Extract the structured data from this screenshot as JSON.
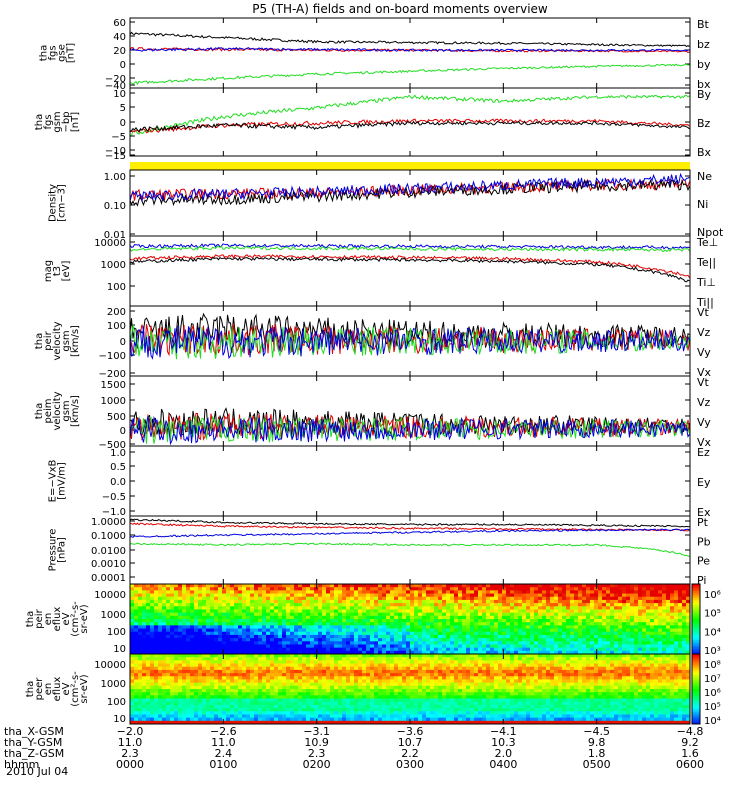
{
  "title": "P5 (TH-A) fields and on-board moments overview",
  "date_label": "2010 Jul 04",
  "colors": {
    "black": "#000000",
    "red": "#e00000",
    "green": "#22dd22",
    "blue": "#0000e0",
    "yellow": "#ffee00"
  },
  "chart_data": [
    {
      "type": "line",
      "panel": "fgs-gse",
      "ylabel_lines": [
        "tha",
        "fgs",
        "gse",
        "[nT]"
      ],
      "ylim": [
        -40,
        60
      ],
      "yticks": [
        "60",
        "40",
        "20",
        "0",
        "−20",
        "−40"
      ],
      "grid": false,
      "legend": "right",
      "x": [
        "0000",
        "0100",
        "0200",
        "0300",
        "0400",
        "0500",
        "0600"
      ],
      "series": [
        {
          "name": "Bt",
          "color": "black",
          "values": [
            38,
            32,
            26,
            25,
            24,
            22,
            20
          ]
        },
        {
          "name": "bz",
          "color": "red",
          "values": [
            16,
            15,
            14,
            14,
            13,
            13,
            12
          ]
        },
        {
          "name": "by",
          "color": "green",
          "values": [
            -33,
            -26,
            -20,
            -16,
            -12,
            -9,
            -7
          ]
        },
        {
          "name": "bx",
          "color": "blue",
          "values": [
            14,
            16,
            15,
            14,
            14,
            14,
            14
          ]
        }
      ]
    },
    {
      "type": "line",
      "panel": "fgs-gsm",
      "ylabel_lines": [
        "tha",
        "fgs",
        "gsm",
        "−bp",
        "[nT]"
      ],
      "ylim": [
        -18,
        13
      ],
      "yticks": [
        "10",
        "5",
        "0",
        "−5",
        "−10",
        "−15"
      ],
      "grid": false,
      "legend": "right",
      "x": [
        "0000",
        "0100",
        "0200",
        "0300",
        "0400",
        "0500",
        "0600"
      ],
      "series": [
        {
          "name": "By",
          "color": "green",
          "values": [
            -8,
            0,
            4,
            9,
            7,
            9,
            9
          ]
        },
        {
          "name": "Bz",
          "color": "red",
          "values": [
            -7,
            -4,
            -3,
            -2,
            -2,
            -2,
            -4
          ]
        },
        {
          "name": "Bx",
          "color": "black",
          "values": [
            -6,
            -4,
            -5,
            -3,
            -3,
            -3,
            -5
          ]
        }
      ]
    },
    {
      "type": "line",
      "panel": "density",
      "ylabel_lines": [
        "Density",
        "[cm−3]"
      ],
      "scale": "log",
      "ylim": [
        0.01,
        1.5
      ],
      "yticks": [
        "1.00",
        "0.10",
        "0.01"
      ],
      "grid": false,
      "legend": "right",
      "x": [
        "0000",
        "0100",
        "0200",
        "0300",
        "0400",
        "0500",
        "0600"
      ],
      "series": [
        {
          "name": "Ne",
          "color": "red",
          "values": [
            0.22,
            0.25,
            0.26,
            0.32,
            0.4,
            0.48,
            0.52
          ]
        },
        {
          "name": "Ni",
          "color": "black",
          "values": [
            0.15,
            0.16,
            0.2,
            0.28,
            0.36,
            0.44,
            0.5
          ]
        },
        {
          "name": "Npot",
          "color": "blue",
          "values": [
            0.2,
            0.24,
            0.28,
            0.36,
            0.46,
            0.6,
            0.75
          ]
        }
      ]
    },
    {
      "type": "line",
      "panel": "temperature",
      "ylabel_lines": [
        "mag",
        "t3",
        "[eV]"
      ],
      "scale": "log",
      "ylim": [
        30,
        15000
      ],
      "yticks": [
        "10000",
        "1000",
        "100"
      ],
      "grid": false,
      "legend": "right",
      "x": [
        "0000",
        "0100",
        "0200",
        "0300",
        "0400",
        "0500",
        "0600"
      ],
      "series": [
        {
          "name": "Te⊥",
          "color": "red",
          "values": [
            2000,
            2500,
            2400,
            2200,
            2000,
            1500,
            400
          ]
        },
        {
          "name": "Te||",
          "color": "black",
          "values": [
            1500,
            2000,
            1900,
            1800,
            1600,
            1200,
            250
          ]
        },
        {
          "name": "Ti⊥",
          "color": "blue",
          "values": [
            6000,
            6500,
            6200,
            6000,
            5800,
            5600,
            5400
          ]
        },
        {
          "name": "Ti||",
          "color": "green",
          "values": [
            4500,
            5200,
            5000,
            4800,
            4600,
            4500,
            4300
          ]
        }
      ]
    },
    {
      "type": "line",
      "panel": "peir-velocity",
      "ylabel_lines": [
        "tha",
        "peir",
        "velocity",
        "gsm",
        "[km/s]"
      ],
      "ylim": [
        -200,
        200
      ],
      "yticks": [
        "200",
        "100",
        "0",
        "−100",
        "−200"
      ],
      "grid": false,
      "legend": "right",
      "x": [
        "0000",
        "0100",
        "0200",
        "0300",
        "0400",
        "0500",
        "0600"
      ],
      "series": [
        {
          "name": "Vt",
          "color": "black",
          "values": [
            40,
            70,
            50,
            40,
            35,
            30,
            30
          ]
        },
        {
          "name": "Vz",
          "color": "red",
          "values": [
            5,
            10,
            5,
            5,
            5,
            5,
            5
          ]
        },
        {
          "name": "Vy",
          "color": "green",
          "values": [
            -5,
            -10,
            -5,
            0,
            -5,
            0,
            0
          ]
        },
        {
          "name": "Vx",
          "color": "blue",
          "values": [
            0,
            -5,
            0,
            0,
            0,
            0,
            0
          ]
        }
      ]
    },
    {
      "type": "line",
      "panel": "peim-velocity",
      "ylabel_lines": [
        "tha",
        "peim",
        "velocity",
        "gsm",
        "[km/s]"
      ],
      "ylim": [
        -500,
        1500
      ],
      "yticks": [
        "1500",
        "1000",
        "500",
        "0",
        "−500"
      ],
      "grid": false,
      "legend": "right",
      "x": [
        "0000",
        "0100",
        "0200",
        "0300",
        "0400",
        "0500",
        "0600"
      ],
      "series": [
        {
          "name": "Vt",
          "color": "black",
          "values": [
            150,
            200,
            180,
            150,
            120,
            100,
            100
          ]
        },
        {
          "name": "Vz",
          "color": "red",
          "values": [
            50,
            60,
            50,
            40,
            40,
            30,
            30
          ]
        },
        {
          "name": "Vy",
          "color": "green",
          "values": [
            -50,
            -40,
            -30,
            -20,
            -20,
            -10,
            0
          ]
        },
        {
          "name": "Vx",
          "color": "blue",
          "values": [
            -30,
            -60,
            -40,
            -20,
            -10,
            -10,
            -5
          ]
        }
      ]
    },
    {
      "type": "line",
      "panel": "efield",
      "ylabel_lines": [
        "E=−VxB",
        "[mV/m]"
      ],
      "ylim": [
        -1.0,
        1.0
      ],
      "yticks": [
        "1.0",
        "0.5",
        "0.0",
        "−0.5",
        "−1.0"
      ],
      "grid": false,
      "legend": "right",
      "series": [
        {
          "name": "Ez",
          "color": "red",
          "values": []
        },
        {
          "name": "Ey",
          "color": "green",
          "values": []
        },
        {
          "name": "Ex",
          "color": "blue",
          "values": []
        }
      ]
    },
    {
      "type": "line",
      "panel": "pressure",
      "ylabel_lines": [
        "Pressure",
        "[nPa]"
      ],
      "scale": "log",
      "ylim": [
        0.0001,
        1.5
      ],
      "yticks": [
        "1.0000",
        "0.1000",
        "0.0100",
        "0.0010",
        "0.0001"
      ],
      "grid": false,
      "legend": "right",
      "x": [
        "0000",
        "0100",
        "0200",
        "0300",
        "0400",
        "0500",
        "0600"
      ],
      "series": [
        {
          "name": "Pt",
          "color": "black",
          "values": [
            0.9,
            0.6,
            0.5,
            0.45,
            0.45,
            0.4,
            0.35
          ]
        },
        {
          "name": "Pb",
          "color": "red",
          "values": [
            0.5,
            0.35,
            0.3,
            0.26,
            0.24,
            0.22,
            0.2
          ]
        },
        {
          "name": "Pe",
          "color": "green",
          "values": [
            0.03,
            0.025,
            0.03,
            0.025,
            0.025,
            0.025,
            0.005
          ]
        },
        {
          "name": "Pi",
          "color": "blue",
          "values": [
            0.08,
            0.1,
            0.12,
            0.15,
            0.18,
            0.2,
            0.22
          ]
        }
      ]
    },
    {
      "type": "heatmap",
      "panel": "peir-en-eflux",
      "ylabel_lines": [
        "tha",
        "peir",
        "en",
        "eflux",
        "eV",
        "(cm²-s-",
        "sr-eV)"
      ],
      "scale": "log",
      "ylim": [
        7,
        30000
      ],
      "yticks": [
        "10000",
        "1000",
        "100",
        "10"
      ],
      "colorbar_ticks": [
        "10⁶",
        "10⁵",
        "10⁴",
        "10³"
      ],
      "colorbar_range": [
        1000,
        1000000
      ]
    },
    {
      "type": "heatmap",
      "panel": "peer-en-eflux",
      "ylabel_lines": [
        "tha",
        "peer",
        "en",
        "eflux",
        "eV",
        "(cm²-s-",
        "sr-eV)"
      ],
      "scale": "log",
      "ylim": [
        7,
        30000
      ],
      "yticks": [
        "10000",
        "1000",
        "100",
        "10"
      ],
      "colorbar_ticks": [
        "10⁸",
        "10⁷",
        "10⁶",
        "10⁵",
        "10⁴"
      ],
      "colorbar_range": [
        10000,
        100000000
      ]
    }
  ],
  "x_axis": {
    "labels": [
      "tha_X-GSM",
      "tha_Y-GSM",
      "tha_Z-GSM",
      "hhmm"
    ],
    "rows": [
      [
        "−2.0",
        "−2.6",
        "−3.1",
        "−3.6",
        "−4.1",
        "−4.5",
        "−4.8"
      ],
      [
        "11.0",
        "11.0",
        "10.9",
        "10.7",
        "10.3",
        "9.8",
        "9.2"
      ],
      [
        "2.3",
        "2.4",
        "2.3",
        "2.2",
        "2.0",
        "1.8",
        "1.6"
      ],
      [
        "0000",
        "0100",
        "0200",
        "0300",
        "0400",
        "0500",
        "0600"
      ]
    ]
  }
}
